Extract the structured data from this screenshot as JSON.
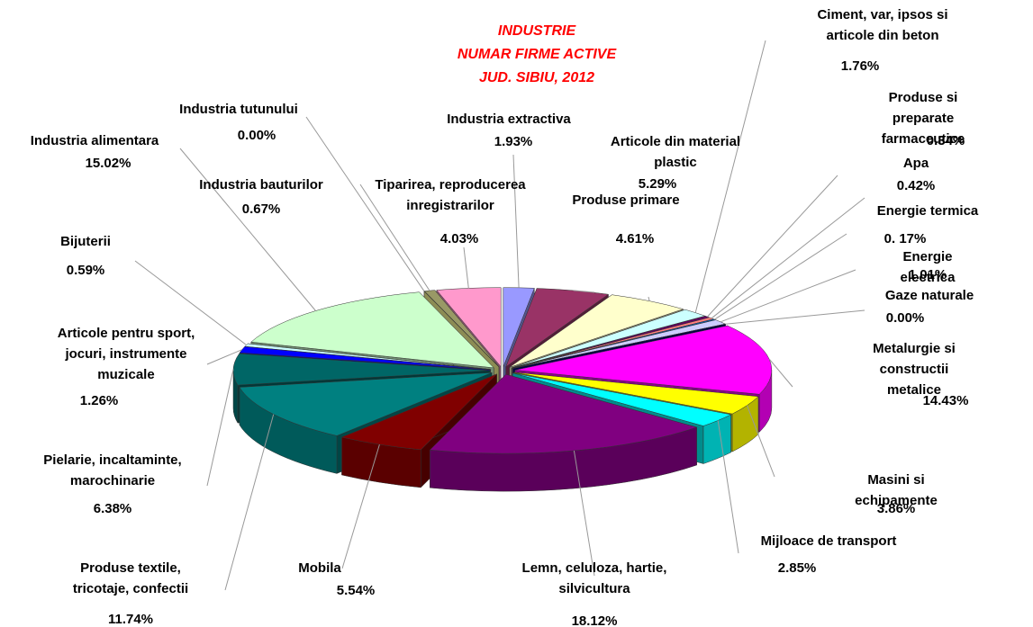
{
  "chart_data": {
    "type": "pie",
    "title": "INDUSTRIE\nNUMAR FIRME ACTIVE\nJUD. SIBIU, 2012",
    "categories": [
      "Industria extractiva",
      "Produse primare",
      "Articole din material\nplastic",
      "Ciment, var, ipsos si\narticole din beton",
      "Produse si preparate\nfarmaceutice",
      "Apa",
      "Energie termica",
      "Energie electrica",
      "Gaze naturale",
      "Metalurgie si constructii\nmetalice",
      "Masini si echipamente",
      "Mijloace de transport",
      "Lemn, celuloza, hartie,\nsilvicultura",
      "Mobila",
      "Produse textile,\ntricotaje, confectii",
      "Pielarie, incaltaminte,\nmarochinarie",
      "Articole pentru sport,\njocuri, instrumente\nmuzicale",
      "Bijuterii",
      "Industria alimentara",
      "Industria tutunului",
      "Industria bauturilor",
      "Tiparirea, reproducerea\ninregistrarilor"
    ],
    "values": [
      1.93,
      4.61,
      5.29,
      1.76,
      0.34,
      0.42,
      0.17,
      1.01,
      0,
      14.43,
      3.86,
      2.85,
      18.12,
      5.54,
      11.74,
      6.38,
      1.26,
      0.59,
      15.02,
      0,
      0.67,
      4.03
    ],
    "value_labels": [
      "1.93%",
      "4.61%",
      "5.29%",
      "1.76%",
      "0.34%",
      "0.42%",
      "0. 17%",
      "1.01%",
      "0.00%",
      "14.43%",
      "3.86%",
      "2.85%",
      "18.12%",
      "5.54%",
      "11.74%",
      "6.38%",
      "1.26%",
      "0.59%",
      "15.02%",
      "0.00%",
      "0.67%",
      "4.03%"
    ],
    "colors": [
      "#9999ff",
      "#993366",
      "#ffffcc",
      "#ccffff",
      "#660066",
      "#ff8080",
      "#0066cc",
      "#ccccff",
      "#000080",
      "#ff00ff",
      "#ffff00",
      "#00ffff",
      "#800080",
      "#800000",
      "#008080",
      "#006666",
      "#0000ff",
      "#ccffff",
      "#ccffcc",
      "#ffff99",
      "#999966",
      "#ff99cc"
    ]
  }
}
